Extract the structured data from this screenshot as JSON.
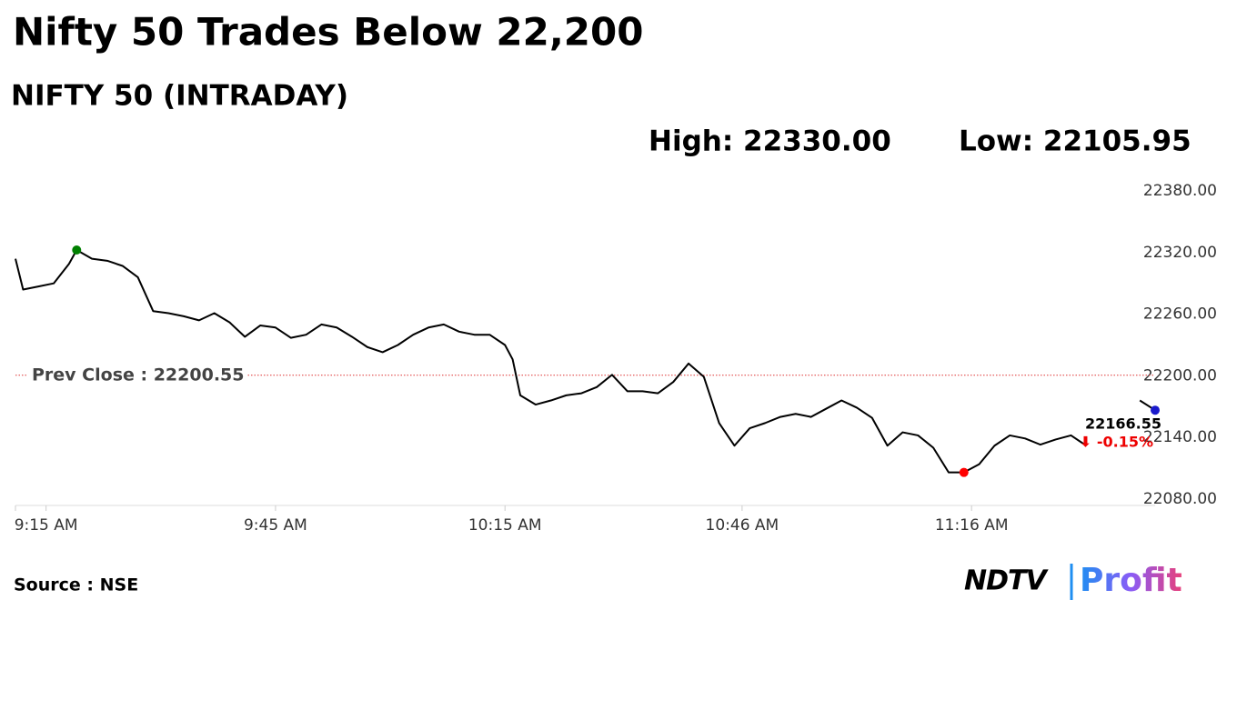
{
  "chart_data": {
    "type": "line",
    "title": "Nifty 50 Trades Below 22,200",
    "subtitle": "NIFTY 50 (INTRADAY)",
    "high_label": "High: 22330.00",
    "low_label": "Low: 22105.95",
    "source": "Source : NSE",
    "logo": {
      "left": "NDTV",
      "right": "Profit"
    },
    "prev_close": 22200.55,
    "prev_close_label": "Prev Close : 22200.55",
    "last_label": "22166.55",
    "change_label": "⬇ -0.15%",
    "x": [
      "09:11",
      "09:12",
      "09:14",
      "09:16",
      "09:18",
      "09:19",
      "09:21",
      "09:23",
      "09:25",
      "09:27",
      "09:29",
      "09:31",
      "09:33",
      "09:35",
      "09:37",
      "09:39",
      "09:41",
      "09:43",
      "09:45",
      "09:47",
      "09:49",
      "09:51",
      "09:53",
      "09:55",
      "09:57",
      "09:59",
      "10:01",
      "10:03",
      "10:05",
      "10:07",
      "10:09",
      "10:11",
      "10:13",
      "10:15",
      "10:16",
      "10:17",
      "10:19",
      "10:21",
      "10:23",
      "10:25",
      "10:27",
      "10:29",
      "10:31",
      "10:33",
      "10:35",
      "10:37",
      "10:39",
      "10:41",
      "10:43",
      "10:45",
      "10:47",
      "10:49",
      "10:51",
      "10:53",
      "10:55",
      "10:57",
      "10:59",
      "11:01",
      "11:03",
      "11:05",
      "11:07",
      "11:09",
      "11:11",
      "11:13",
      "11:15",
      "11:17",
      "11:19",
      "11:21",
      "11:23",
      "11:25",
      "11:27",
      "11:29",
      "11:31",
      "11:34",
      "11:38",
      "11:40"
    ],
    "series": [
      {
        "name": "NIFTY 50",
        "color": "#000000",
        "values": [
          22314,
          22284,
          22287,
          22290,
          22309,
          22322.5,
          22314,
          22312,
          22307,
          22296,
          22263,
          22261,
          22258,
          22254,
          22261,
          22252,
          22238,
          22249,
          22247,
          22237,
          22240,
          22250,
          22247,
          22238,
          22228,
          22223,
          22230,
          22240,
          22247,
          22250,
          22243,
          22240,
          22240,
          22230,
          22216,
          22181,
          22172,
          22176,
          22181,
          22183,
          22189,
          22201,
          22185,
          22185,
          22183,
          22194,
          22212,
          22199,
          22154,
          22132,
          22149,
          22154,
          22160,
          22163,
          22160,
          22168,
          22176,
          22169,
          22159,
          22132,
          22145,
          22142,
          22130,
          22106,
          22105.95,
          22114,
          22132,
          22142,
          22139,
          22133,
          22138,
          22142,
          22132,
          null,
          22176,
          22166.55
        ]
      }
    ],
    "markers": [
      {
        "index": 5,
        "color": "#008000"
      },
      {
        "index": 64,
        "color": "#ff0000"
      },
      {
        "index": 75,
        "color": "#1a1acc"
      }
    ],
    "xlim": [
      "09:11",
      "11:40"
    ],
    "xticks": [
      {
        "value": "09:15",
        "label": "9:15 AM"
      },
      {
        "value": "09:45",
        "label": "9:45 AM"
      },
      {
        "value": "10:15",
        "label": "10:15 AM"
      },
      {
        "value": "10:46",
        "label": "10:46 AM"
      },
      {
        "value": "11:16",
        "label": "11:16 AM"
      }
    ],
    "ylim": [
      22080,
      22380
    ],
    "yticks": [
      {
        "value": 22080,
        "label": "22080.00"
      },
      {
        "value": 22140,
        "label": "22140.00"
      },
      {
        "value": 22200,
        "label": "22200.00"
      },
      {
        "value": 22260,
        "label": "22260.00"
      },
      {
        "value": 22320,
        "label": "22320.00"
      },
      {
        "value": 22380,
        "label": "22380.00"
      }
    ]
  }
}
